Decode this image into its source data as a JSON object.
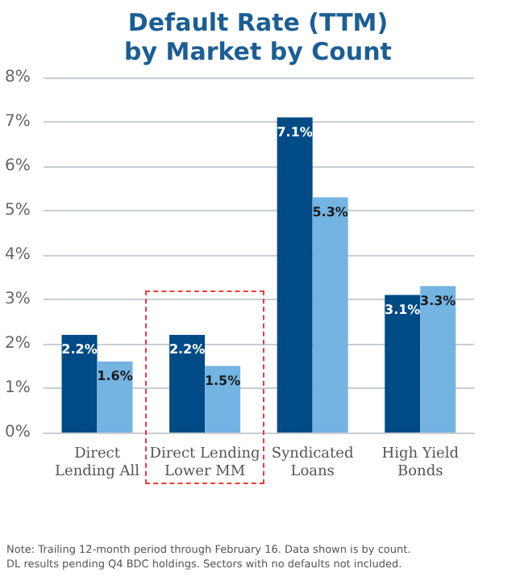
{
  "chart_data": {
    "type": "bar",
    "title": "Default Rate (TTM)\nby Market by Count",
    "categories": [
      "Direct\nLending All",
      "Direct Lending\nLower MM",
      "Syndicated\nLoans",
      "High Yield\nBonds"
    ],
    "series": [
      {
        "color": "#004a86",
        "values": [
          2.2,
          2.2,
          7.1,
          3.1
        ],
        "value_labels": [
          "2.2%",
          "2.2%",
          "7.1%",
          "3.1%"
        ]
      },
      {
        "color": "#74b4e2",
        "values": [
          1.6,
          1.5,
          5.3,
          3.3
        ],
        "value_labels": [
          "1.6%",
          "1.5%",
          "5.3%",
          "3.3%"
        ]
      }
    ],
    "ylim": [
      0,
      8
    ],
    "yticks": [
      {
        "value": 0,
        "label": "0%"
      },
      {
        "value": 1,
        "label": "1%"
      },
      {
        "value": 2,
        "label": "2%"
      },
      {
        "value": 3,
        "label": "3%"
      },
      {
        "value": 4,
        "label": "4%"
      },
      {
        "value": 5,
        "label": "5%"
      },
      {
        "value": 6,
        "label": "6%"
      },
      {
        "value": 7,
        "label": "7%"
      },
      {
        "value": 8,
        "label": "8%"
      }
    ],
    "grid": "y",
    "annotations": [
      "Note: Trailing 12-month period through February 16. Data shown is by count.\nDL results pending Q4 BDC holdings. Sectors with no defaults not included."
    ]
  }
}
